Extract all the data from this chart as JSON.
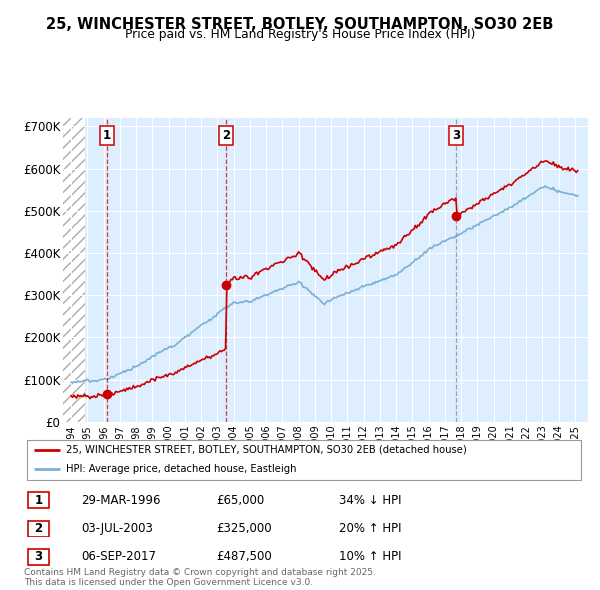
{
  "title1": "25, WINCHESTER STREET, BOTLEY, SOUTHAMPTON, SO30 2EB",
  "title2": "Price paid vs. HM Land Registry's House Price Index (HPI)",
  "sale_prices": [
    65000,
    325000,
    487500
  ],
  "sale_labels": [
    "1",
    "2",
    "3"
  ],
  "legend_line1": "25, WINCHESTER STREET, BOTLEY, SOUTHAMPTON, SO30 2EB (detached house)",
  "legend_line2": "HPI: Average price, detached house, Eastleigh",
  "table_rows": [
    [
      "1",
      "29-MAR-1996",
      "£65,000",
      "34% ↓ HPI"
    ],
    [
      "2",
      "03-JUL-2003",
      "£325,000",
      "20% ↑ HPI"
    ],
    [
      "3",
      "06-SEP-2017",
      "£487,500",
      "10% ↑ HPI"
    ]
  ],
  "footnote": "Contains HM Land Registry data © Crown copyright and database right 2025.\nThis data is licensed under the Open Government Licence v3.0.",
  "line_color_red": "#cc0000",
  "line_color_blue": "#7bafd4",
  "bg_color": "#ddeeff",
  "ylim": [
    0,
    720000
  ],
  "yticks": [
    0,
    100000,
    200000,
    300000,
    400000,
    500000,
    600000,
    700000
  ],
  "ytick_labels": [
    "£0",
    "£100K",
    "£200K",
    "£300K",
    "£400K",
    "£500K",
    "£600K",
    "£700K"
  ],
  "s1_year": 1996,
  "s1_month": 3,
  "s2_year": 2003,
  "s2_month": 7,
  "s3_year": 2017,
  "s3_month": 9
}
